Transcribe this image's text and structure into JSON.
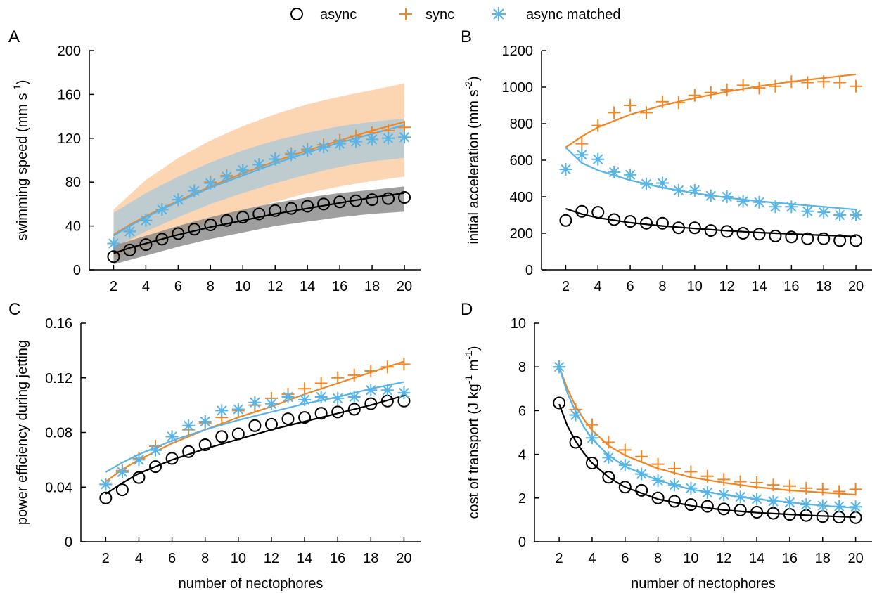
{
  "legend": {
    "position": "top-center",
    "entries": [
      {
        "label": "async",
        "marker": "circle",
        "color": "#000000"
      },
      {
        "label": "sync",
        "marker": "plus",
        "color": "#f28522"
      },
      {
        "label": "async matched",
        "marker": "asterisk",
        "color": "#56b4e9"
      }
    ]
  },
  "colors": {
    "async": "#000000",
    "sync": "#f28522",
    "matched": "#56b4e9",
    "band_async": "#7f7f7f",
    "band_sync": "#fbc79a",
    "band_matched": "#a9c8d9"
  },
  "chart_data": [
    {
      "panel": "A",
      "type": "scatter",
      "xlabel": "",
      "ylabel": "swimming speed (mm s",
      "ylabel_sup": "-1",
      "ylabel_close": ")",
      "xlim": [
        0.5,
        21
      ],
      "ylim": [
        0,
        200
      ],
      "xticks": [
        2,
        4,
        6,
        8,
        10,
        12,
        14,
        16,
        18,
        20
      ],
      "yticks": [
        0,
        40,
        80,
        120,
        160,
        200
      ],
      "ytick_labels": [
        "0",
        "40",
        "80",
        "120",
        "160",
        "200"
      ],
      "x": [
        2,
        3,
        4,
        5,
        6,
        7,
        8,
        9,
        10,
        11,
        12,
        13,
        14,
        15,
        16,
        17,
        18,
        19,
        20
      ],
      "series": [
        {
          "name": "async",
          "values": [
            12,
            18,
            23,
            28,
            33,
            37,
            41,
            45,
            48,
            51,
            54,
            56,
            58,
            60,
            62,
            63,
            64,
            65,
            66
          ]
        },
        {
          "name": "sync",
          "values": [
            24,
            35,
            45,
            55,
            64,
            72,
            80,
            86,
            91,
            96,
            101,
            106,
            110,
            114,
            118,
            122,
            125,
            127,
            130
          ]
        },
        {
          "name": "async matched",
          "values": [
            24,
            35,
            45,
            55,
            64,
            72,
            79,
            85,
            91,
            96,
            101,
            105,
            109,
            112,
            115,
            117,
            119,
            120,
            121
          ]
        }
      ],
      "fits": [
        {
          "name": "async",
          "x": [
            2,
            3,
            4,
            6,
            8,
            10,
            12,
            14,
            16,
            18,
            20
          ],
          "values": [
            15,
            20,
            24,
            32,
            39,
            45,
            51,
            56,
            61,
            66,
            70
          ]
        },
        {
          "name": "sync",
          "x": [
            2,
            3,
            4,
            6,
            8,
            10,
            12,
            14,
            16,
            18,
            20
          ],
          "values": [
            32,
            41,
            49,
            63,
            76,
            88,
            99,
            109,
            118,
            127,
            135
          ]
        },
        {
          "name": "async matched",
          "x": [
            2,
            3,
            4,
            6,
            8,
            10,
            12,
            14,
            16,
            18,
            20
          ],
          "values": [
            31,
            40,
            48,
            62,
            75,
            86,
            97,
            107,
            116,
            124,
            132
          ]
        }
      ],
      "bands": [
        {
          "name": "sync",
          "x": [
            2,
            4,
            6,
            8,
            10,
            12,
            14,
            16,
            18,
            20
          ],
          "upper": [
            55,
            82,
            102,
            118,
            131,
            142,
            151,
            158,
            164,
            170
          ],
          "lower": [
            10,
            20,
            32,
            43,
            53,
            62,
            70,
            76,
            81,
            85
          ]
        },
        {
          "name": "async matched",
          "x": [
            2,
            4,
            6,
            8,
            10,
            12,
            14,
            16,
            18,
            20
          ],
          "upper": [
            52,
            70,
            85,
            98,
            109,
            118,
            125,
            131,
            135,
            138
          ],
          "lower": [
            20,
            35,
            48,
            60,
            70,
            79,
            87,
            94,
            99,
            102
          ]
        },
        {
          "name": "async",
          "x": [
            2,
            4,
            6,
            8,
            10,
            12,
            14,
            16,
            18,
            20
          ],
          "upper": [
            22,
            31,
            40,
            48,
            55,
            61,
            66,
            70,
            73,
            76
          ],
          "lower": [
            5,
            13,
            21,
            28,
            34,
            40,
            44,
            48,
            51,
            53
          ]
        }
      ]
    },
    {
      "panel": "B",
      "type": "scatter",
      "xlabel": "",
      "ylabel": "initial acceleration (mm s",
      "ylabel_sup": "-2",
      "ylabel_close": ")",
      "xlim": [
        0.5,
        21
      ],
      "ylim": [
        0,
        1200
      ],
      "xticks": [
        2,
        4,
        6,
        8,
        10,
        12,
        14,
        16,
        18,
        20
      ],
      "yticks": [
        0,
        200,
        400,
        600,
        800,
        1000,
        1200
      ],
      "ytick_labels": [
        "0",
        "200",
        "400",
        "600",
        "800",
        "1000",
        "1200"
      ],
      "x": [
        2,
        3,
        4,
        5,
        6,
        7,
        8,
        9,
        10,
        11,
        12,
        13,
        14,
        15,
        16,
        17,
        18,
        19,
        20
      ],
      "series": [
        {
          "name": "async",
          "values": [
            270,
            320,
            315,
            275,
            265,
            255,
            255,
            230,
            230,
            215,
            210,
            200,
            195,
            185,
            180,
            170,
            170,
            160,
            160
          ]
        },
        {
          "name": "sync",
          "values": [
            null,
            690,
            790,
            860,
            900,
            860,
            920,
            915,
            955,
            970,
            985,
            1010,
            995,
            1005,
            1030,
            1025,
            1030,
            1025,
            1005
          ]
        },
        {
          "name": "async matched",
          "values": [
            550,
            630,
            605,
            535,
            520,
            470,
            475,
            435,
            435,
            405,
            400,
            375,
            370,
            345,
            345,
            320,
            315,
            300,
            300
          ]
        }
      ],
      "fits": [
        {
          "name": "async",
          "x": [
            2,
            3,
            4,
            6,
            8,
            10,
            12,
            14,
            16,
            18,
            20
          ],
          "values": [
            335,
            305,
            285,
            258,
            240,
            226,
            214,
            204,
            196,
            189,
            182
          ]
        },
        {
          "name": "sync",
          "x": [
            2,
            3,
            4,
            6,
            8,
            10,
            12,
            14,
            16,
            18,
            20
          ],
          "values": [
            670,
            730,
            780,
            850,
            900,
            940,
            975,
            1005,
            1030,
            1050,
            1070
          ]
        },
        {
          "name": "async matched",
          "x": [
            2,
            3,
            4,
            6,
            8,
            10,
            12,
            14,
            16,
            18,
            20
          ],
          "values": [
            670,
            585,
            545,
            490,
            450,
            420,
            395,
            375,
            360,
            345,
            330
          ]
        }
      ]
    },
    {
      "panel": "C",
      "type": "scatter",
      "xlabel": "number of nectophores",
      "ylabel": "power efficiency during jetting",
      "xlim": [
        0.5,
        21
      ],
      "ylim": [
        0,
        0.16
      ],
      "xticks": [
        2,
        4,
        6,
        8,
        10,
        12,
        14,
        16,
        18,
        20
      ],
      "yticks": [
        0,
        0.04,
        0.08,
        0.12,
        0.16
      ],
      "ytick_labels": [
        "0",
        "0.04",
        "0.08",
        "0.12",
        "0.16"
      ],
      "x": [
        2,
        3,
        4,
        5,
        6,
        7,
        8,
        9,
        10,
        11,
        12,
        13,
        14,
        15,
        16,
        17,
        18,
        19,
        20
      ],
      "series": [
        {
          "name": "async",
          "values": [
            0.032,
            0.038,
            0.047,
            0.055,
            0.061,
            0.066,
            0.071,
            0.077,
            0.079,
            0.085,
            0.086,
            0.09,
            0.091,
            0.094,
            0.095,
            0.097,
            0.101,
            0.103,
            0.103
          ]
        },
        {
          "name": "sync",
          "values": [
            0.042,
            0.052,
            0.061,
            0.07,
            0.077,
            0.082,
            0.087,
            0.091,
            0.096,
            0.1,
            0.105,
            0.108,
            0.112,
            0.116,
            0.12,
            0.122,
            0.125,
            0.128,
            0.13
          ]
        },
        {
          "name": "async matched",
          "values": [
            0.042,
            0.051,
            0.06,
            0.067,
            0.077,
            0.085,
            0.088,
            0.096,
            0.097,
            0.102,
            0.101,
            0.106,
            0.104,
            0.106,
            0.105,
            0.106,
            0.111,
            0.111,
            0.109
          ]
        }
      ],
      "fits": [
        {
          "name": "async",
          "x": [
            2,
            3,
            4,
            6,
            8,
            10,
            12,
            14,
            16,
            18,
            20
          ],
          "values": [
            0.035,
            0.043,
            0.05,
            0.06,
            0.068,
            0.075,
            0.082,
            0.088,
            0.094,
            0.1,
            0.107
          ]
        },
        {
          "name": "sync",
          "x": [
            2,
            3,
            4,
            6,
            8,
            10,
            12,
            14,
            16,
            18,
            20
          ],
          "values": [
            0.044,
            0.053,
            0.06,
            0.072,
            0.082,
            0.091,
            0.099,
            0.108,
            0.116,
            0.124,
            0.132
          ]
        },
        {
          "name": "async matched",
          "x": [
            2,
            3,
            4,
            6,
            8,
            10,
            12,
            14,
            16,
            18,
            20
          ],
          "values": [
            0.051,
            0.058,
            0.064,
            0.074,
            0.082,
            0.089,
            0.095,
            0.101,
            0.106,
            0.112,
            0.117
          ]
        }
      ]
    },
    {
      "panel": "D",
      "type": "scatter",
      "xlabel": "number of nectophores",
      "ylabel": "cost of transport (J kg",
      "ylabel_sup": "-1",
      "ylabel_mid": " m",
      "ylabel_sup2": "-1",
      "ylabel_close": ")",
      "xlim": [
        0.5,
        21
      ],
      "ylim": [
        0,
        10
      ],
      "xticks": [
        2,
        4,
        6,
        8,
        10,
        12,
        14,
        16,
        18,
        20
      ],
      "yticks": [
        0,
        2,
        4,
        6,
        8,
        10
      ],
      "ytick_labels": [
        "0",
        "2",
        "4",
        "6",
        "8",
        "10"
      ],
      "x": [
        2,
        3,
        4,
        5,
        6,
        7,
        8,
        9,
        10,
        11,
        12,
        13,
        14,
        15,
        16,
        17,
        18,
        19,
        20
      ],
      "series": [
        {
          "name": "async",
          "values": [
            6.35,
            4.55,
            3.6,
            2.95,
            2.5,
            2.35,
            2.0,
            1.85,
            1.7,
            1.62,
            1.5,
            1.45,
            1.35,
            1.3,
            1.25,
            1.2,
            1.15,
            1.12,
            1.1
          ]
        },
        {
          "name": "sync",
          "values": [
            8.0,
            6.05,
            5.35,
            4.55,
            4.2,
            3.9,
            3.55,
            3.35,
            3.2,
            3.0,
            2.85,
            2.75,
            2.7,
            2.6,
            2.55,
            2.45,
            2.4,
            2.3,
            2.4
          ]
        },
        {
          "name": "async matched",
          "values": [
            8.0,
            5.8,
            4.75,
            3.85,
            3.5,
            3.1,
            2.8,
            2.6,
            2.45,
            2.25,
            2.15,
            2.05,
            1.95,
            1.85,
            1.8,
            1.7,
            1.65,
            1.62,
            1.6
          ]
        }
      ],
      "fits": [
        {
          "name": "async",
          "x": [
            2,
            2.5,
            3,
            3.5,
            4,
            5,
            6,
            8,
            10,
            12,
            14,
            16,
            18,
            20
          ],
          "values": [
            6.3,
            5.3,
            4.6,
            4.05,
            3.6,
            2.95,
            2.5,
            1.95,
            1.65,
            1.45,
            1.33,
            1.25,
            1.18,
            1.12
          ]
        },
        {
          "name": "sync",
          "x": [
            2,
            2.5,
            3,
            3.5,
            4,
            5,
            6,
            8,
            10,
            12,
            14,
            16,
            18,
            20
          ],
          "values": [
            8.0,
            7.0,
            6.2,
            5.6,
            5.1,
            4.4,
            3.95,
            3.35,
            2.95,
            2.7,
            2.5,
            2.35,
            2.25,
            2.15
          ]
        },
        {
          "name": "async matched",
          "x": [
            2,
            2.5,
            3,
            3.5,
            4,
            5,
            6,
            8,
            10,
            12,
            14,
            16,
            18,
            20
          ],
          "values": [
            8.0,
            6.8,
            5.95,
            5.25,
            4.7,
            3.95,
            3.45,
            2.8,
            2.4,
            2.15,
            1.95,
            1.8,
            1.65,
            1.55
          ]
        }
      ]
    }
  ]
}
